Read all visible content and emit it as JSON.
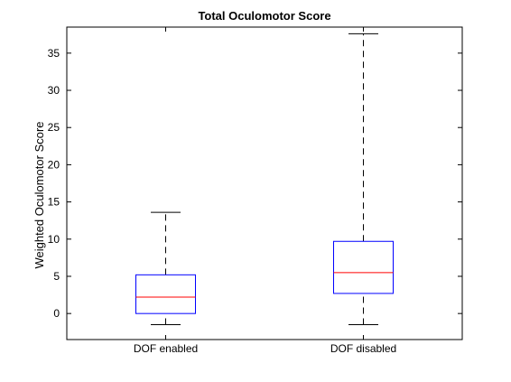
{
  "chart_data": {
    "type": "box",
    "title": "Total Oculomotor Score",
    "xlabel": "",
    "ylabel": "Weighted Oculomotor Score",
    "ylim": [
      -3.5,
      38.5
    ],
    "yticks": [
      0,
      5,
      10,
      15,
      20,
      25,
      30,
      35
    ],
    "categories": [
      "DOF enabled",
      "DOF disabled"
    ],
    "boxes": [
      {
        "category": "DOF enabled",
        "whisker_low": -1.5,
        "q1": 0.0,
        "median": 2.2,
        "q3": 5.2,
        "whisker_high": 13.6
      },
      {
        "category": "DOF disabled",
        "whisker_low": -1.5,
        "q1": 2.7,
        "median": 5.5,
        "q3": 9.7,
        "whisker_high": 37.6
      }
    ],
    "grid": false,
    "colors": {
      "box": "#0000ff",
      "median": "#ff0000",
      "whisker": "#000000",
      "axes": "#000000"
    }
  }
}
